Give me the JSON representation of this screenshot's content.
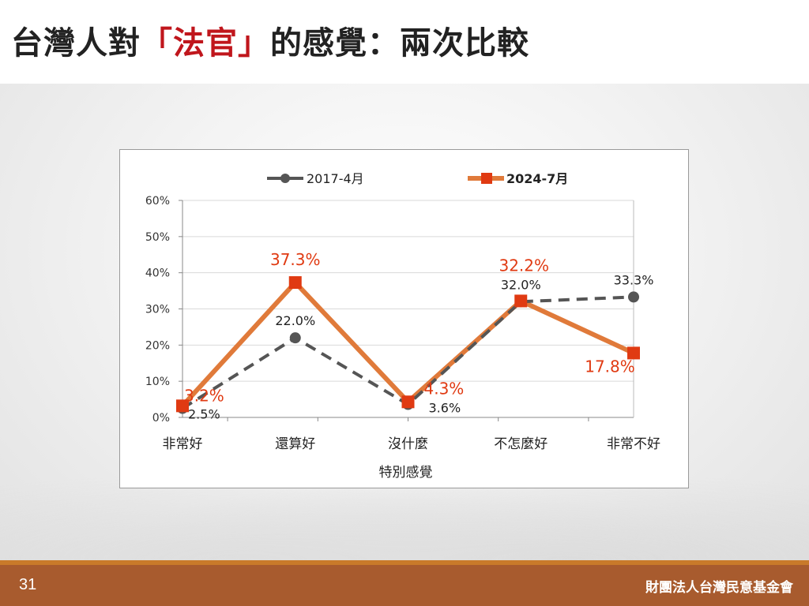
{
  "title": {
    "prefix": "台灣人對",
    "highlight": "「法官」",
    "suffix": "的感覺：兩次比較"
  },
  "footer": {
    "page_number": "31",
    "organization": "財團法人台灣民意基金會"
  },
  "colors": {
    "title_highlight": "#c0161c",
    "series_2017": "#555555",
    "series_2024_line": "#e07a3a",
    "series_2024_marker": "#e03a12",
    "footer_bg": "#a85b2e",
    "footer_line": "#c97a2a"
  },
  "chart_data": {
    "type": "line",
    "categories": [
      "非常好",
      "還算好",
      "沒什麼",
      "不怎麼好",
      "非常不好"
    ],
    "series": [
      {
        "name": "2017-4月",
        "values": [
          2.5,
          22.0,
          3.6,
          32.0,
          33.3
        ],
        "labels": [
          "2.5%",
          "22.0%",
          "3.6%",
          "32.0%",
          "33.3%"
        ],
        "style": "dashed-circle"
      },
      {
        "name": "2024-7月",
        "values": [
          3.2,
          37.3,
          4.3,
          32.2,
          17.8
        ],
        "labels": [
          "3.2%",
          "37.3%",
          "4.3%",
          "32.2%",
          "17.8%"
        ],
        "style": "solid-square"
      }
    ],
    "xlabel": "特別感覺",
    "ylabel": "",
    "ylim": [
      0,
      60
    ],
    "yticks": [
      "0%",
      "10%",
      "20%",
      "30%",
      "40%",
      "50%",
      "60%"
    ],
    "grid": true,
    "legend": "top"
  }
}
